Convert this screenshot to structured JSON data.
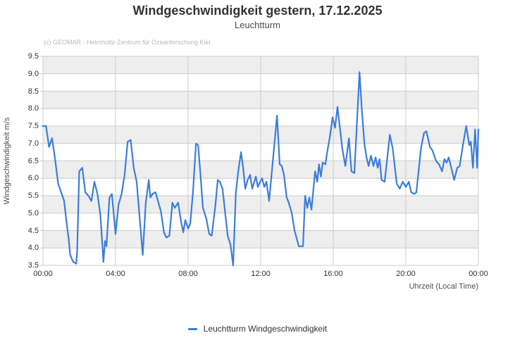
{
  "chart": {
    "title": "Windgeschwindigkeit gestern, 17.12.2025",
    "subtitle": "Leuchtturm",
    "credit": "(c) GEOMAR - Helmholtz-Zentrum für Ozeanforschung Kiel"
  },
  "legend": {
    "label": "Leuchtturm Windgeschwindigkeit"
  },
  "colors": {
    "line": "#3b7ddd",
    "band": "#eeeeee",
    "grid": "#cccccc",
    "axis_text": "#333333",
    "credit_text": "#b8b8b8"
  },
  "chart_data": {
    "type": "line",
    "title": "Windgeschwindigkeit gestern, 17.12.2025",
    "subtitle": "Leuchtturm",
    "xlabel": "Uhrzeit (Local Time)",
    "ylabel": "Windgeschwindigkeit m/s",
    "ylim": [
      3.5,
      9.5
    ],
    "ytick_step": 0.5,
    "x_range_minutes": [
      0,
      1440
    ],
    "xticks": [
      {
        "minutes": 0,
        "label": "00:00"
      },
      {
        "minutes": 240,
        "label": "04:00"
      },
      {
        "minutes": 480,
        "label": "08:00"
      },
      {
        "minutes": 720,
        "label": "12:00"
      },
      {
        "minutes": 960,
        "label": "16:00"
      },
      {
        "minutes": 1200,
        "label": "20:00"
      },
      {
        "minutes": 1440,
        "label": "00:00"
      }
    ],
    "grid": true,
    "alternating_bands": true,
    "legend_position": "bottom",
    "series": [
      {
        "name": "Leuchtturm Windgeschwindigkeit",
        "color": "#3b7ddd",
        "points_format": "[minutes_since_midnight, wind_speed_m_per_s]",
        "points": [
          [
            0,
            7.5
          ],
          [
            10,
            7.5
          ],
          [
            20,
            6.9
          ],
          [
            30,
            7.15
          ],
          [
            40,
            6.55
          ],
          [
            50,
            5.85
          ],
          [
            60,
            5.6
          ],
          [
            70,
            5.35
          ],
          [
            80,
            4.6
          ],
          [
            85,
            4.25
          ],
          [
            90,
            3.8
          ],
          [
            100,
            3.6
          ],
          [
            110,
            3.55
          ],
          [
            113,
            3.9
          ],
          [
            120,
            6.2
          ],
          [
            130,
            6.3
          ],
          [
            140,
            5.6
          ],
          [
            150,
            5.5
          ],
          [
            160,
            5.35
          ],
          [
            170,
            5.9
          ],
          [
            180,
            5.55
          ],
          [
            190,
            4.95
          ],
          [
            200,
            3.6
          ],
          [
            205,
            4.2
          ],
          [
            210,
            4.05
          ],
          [
            220,
            5.45
          ],
          [
            228,
            5.55
          ],
          [
            240,
            4.4
          ],
          [
            250,
            5.25
          ],
          [
            260,
            5.55
          ],
          [
            270,
            6.1
          ],
          [
            280,
            7.05
          ],
          [
            290,
            7.1
          ],
          [
            300,
            6.3
          ],
          [
            310,
            5.9
          ],
          [
            320,
            4.85
          ],
          [
            330,
            3.8
          ],
          [
            340,
            5.3
          ],
          [
            350,
            5.95
          ],
          [
            355,
            5.45
          ],
          [
            362,
            5.55
          ],
          [
            372,
            5.6
          ],
          [
            382,
            5.3
          ],
          [
            390,
            5.05
          ],
          [
            400,
            4.45
          ],
          [
            408,
            4.3
          ],
          [
            418,
            4.35
          ],
          [
            428,
            5.3
          ],
          [
            436,
            5.15
          ],
          [
            447,
            5.3
          ],
          [
            457,
            4.75
          ],
          [
            464,
            4.45
          ],
          [
            471,
            4.8
          ],
          [
            480,
            4.55
          ],
          [
            487,
            4.7
          ],
          [
            496,
            5.6
          ],
          [
            506,
            7.0
          ],
          [
            513,
            6.95
          ],
          [
            520,
            6.2
          ],
          [
            529,
            5.15
          ],
          [
            540,
            4.85
          ],
          [
            550,
            4.4
          ],
          [
            558,
            4.35
          ],
          [
            570,
            5.2
          ],
          [
            578,
            5.95
          ],
          [
            585,
            5.9
          ],
          [
            594,
            5.7
          ],
          [
            604,
            4.9
          ],
          [
            611,
            4.35
          ],
          [
            620,
            4.1
          ],
          [
            629,
            3.5
          ],
          [
            638,
            5.6
          ],
          [
            646,
            6.2
          ],
          [
            655,
            6.75
          ],
          [
            662,
            6.3
          ],
          [
            669,
            5.7
          ],
          [
            677,
            5.95
          ],
          [
            685,
            6.1
          ],
          [
            692,
            5.7
          ],
          [
            704,
            6.05
          ],
          [
            711,
            5.75
          ],
          [
            718,
            5.9
          ],
          [
            725,
            6.0
          ],
          [
            732,
            5.75
          ],
          [
            739,
            5.9
          ],
          [
            748,
            5.35
          ],
          [
            764,
            6.85
          ],
          [
            774,
            7.8
          ],
          [
            783,
            6.4
          ],
          [
            790,
            6.35
          ],
          [
            797,
            6.1
          ],
          [
            806,
            5.45
          ],
          [
            813,
            5.3
          ],
          [
            823,
            5.0
          ],
          [
            832,
            4.5
          ],
          [
            846,
            4.05
          ],
          [
            860,
            4.05
          ],
          [
            867,
            5.5
          ],
          [
            874,
            5.15
          ],
          [
            881,
            5.45
          ],
          [
            888,
            5.1
          ],
          [
            900,
            6.2
          ],
          [
            907,
            5.9
          ],
          [
            913,
            6.4
          ],
          [
            919,
            6.05
          ],
          [
            925,
            6.45
          ],
          [
            934,
            6.4
          ],
          [
            941,
            6.8
          ],
          [
            948,
            7.15
          ],
          [
            958,
            7.75
          ],
          [
            966,
            7.45
          ],
          [
            974,
            8.05
          ],
          [
            990,
            6.85
          ],
          [
            1000,
            6.35
          ],
          [
            1012,
            7.15
          ],
          [
            1020,
            6.2
          ],
          [
            1030,
            6.15
          ],
          [
            1047,
            9.05
          ],
          [
            1055,
            7.9
          ],
          [
            1063,
            7.0
          ],
          [
            1070,
            6.6
          ],
          [
            1077,
            6.35
          ],
          [
            1085,
            6.65
          ],
          [
            1093,
            6.35
          ],
          [
            1100,
            6.6
          ],
          [
            1107,
            6.3
          ],
          [
            1113,
            6.55
          ],
          [
            1120,
            5.95
          ],
          [
            1130,
            5.9
          ],
          [
            1147,
            7.25
          ],
          [
            1157,
            6.85
          ],
          [
            1170,
            5.85
          ],
          [
            1180,
            5.7
          ],
          [
            1190,
            5.9
          ],
          [
            1200,
            5.75
          ],
          [
            1210,
            5.9
          ],
          [
            1218,
            5.6
          ],
          [
            1228,
            5.55
          ],
          [
            1235,
            5.6
          ],
          [
            1250,
            6.85
          ],
          [
            1260,
            7.3
          ],
          [
            1268,
            7.35
          ],
          [
            1280,
            6.9
          ],
          [
            1288,
            6.8
          ],
          [
            1300,
            6.5
          ],
          [
            1310,
            6.4
          ],
          [
            1320,
            6.2
          ],
          [
            1328,
            6.55
          ],
          [
            1335,
            6.45
          ],
          [
            1342,
            6.6
          ],
          [
            1352,
            6.25
          ],
          [
            1360,
            5.95
          ],
          [
            1370,
            6.3
          ],
          [
            1378,
            6.35
          ],
          [
            1390,
            7.0
          ],
          [
            1400,
            7.5
          ],
          [
            1410,
            6.95
          ],
          [
            1415,
            7.05
          ],
          [
            1422,
            6.3
          ],
          [
            1429,
            7.4
          ],
          [
            1436,
            6.3
          ],
          [
            1440,
            7.4
          ]
        ]
      }
    ]
  }
}
